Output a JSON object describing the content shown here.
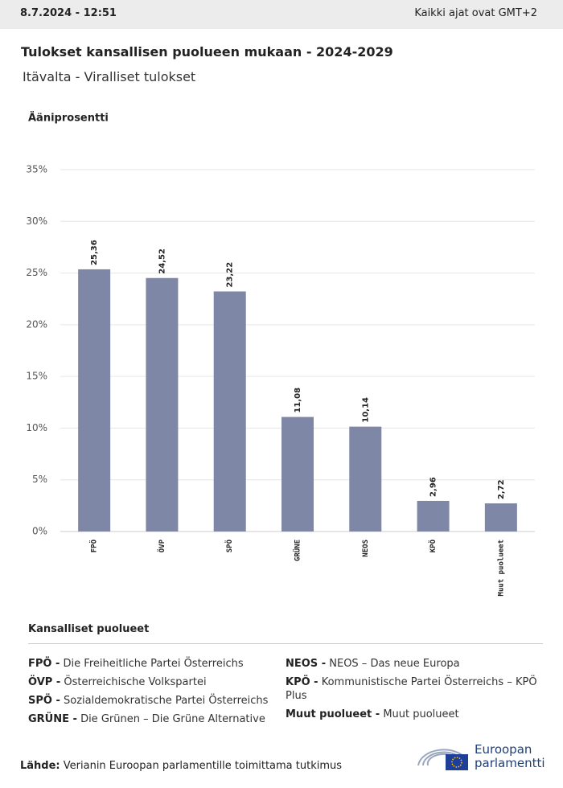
{
  "header": {
    "timestamp": "8.7.2024 - 12:51",
    "timezone": "Kaikki ajat ovat GMT+2"
  },
  "chart_data": {
    "type": "bar",
    "title": "Tulokset kansallisen puolueen mukaan - 2024-2029",
    "subtitle": "Itävalta - Viralliset tulokset",
    "y_label": "Ääniprosentti",
    "categories": [
      "FPÖ",
      "ÖVP",
      "SPÖ",
      "GRÜNE",
      "NEOS",
      "KPÖ",
      "Muut puolueet"
    ],
    "values": [
      25.36,
      24.52,
      23.22,
      11.08,
      10.14,
      2.96,
      2.72
    ],
    "value_labels": [
      "25,36",
      "24,52",
      "23,22",
      "11,08",
      "10,14",
      "2,96",
      "2,72"
    ],
    "color": "#7e87a5",
    "ylim": [
      0,
      35
    ],
    "yticks": [
      {
        "value": 0,
        "label": "0%"
      },
      {
        "value": 5,
        "label": "5%"
      },
      {
        "value": 10,
        "label": "10%"
      },
      {
        "value": 15,
        "label": "15%"
      },
      {
        "value": 20,
        "label": "20%"
      },
      {
        "value": 25,
        "label": "25%"
      },
      {
        "value": 30,
        "label": "30%"
      },
      {
        "value": 35,
        "label": "35%"
      }
    ],
    "grid": true
  },
  "legend": {
    "title": "Kansalliset puolueet",
    "items": [
      {
        "abbr": "FPÖ -",
        "desc": "Die Freiheitliche Partei Österreichs"
      },
      {
        "abbr": "ÖVP -",
        "desc": "Österreichische Volkspartei"
      },
      {
        "abbr": "SPÖ -",
        "desc": "Sozialdemokratische Partei Österreichs"
      },
      {
        "abbr": "GRÜNE -",
        "desc": "Die Grünen – Die Grüne Alternative"
      },
      {
        "abbr": "NEOS -",
        "desc": "NEOS – Das neue Europa"
      },
      {
        "abbr": "KPÖ -",
        "desc": "Kommunistische Partei Österreichs – KPÖ Plus"
      },
      {
        "abbr": "Muut puolueet -",
        "desc": "Muut puolueet"
      }
    ]
  },
  "footer": {
    "source_label": "Lähde:",
    "source": "Verianin Euroopan parlamentille toimittama tutkimus",
    "logo": [
      "Euroopan",
      "parlamentti"
    ]
  }
}
